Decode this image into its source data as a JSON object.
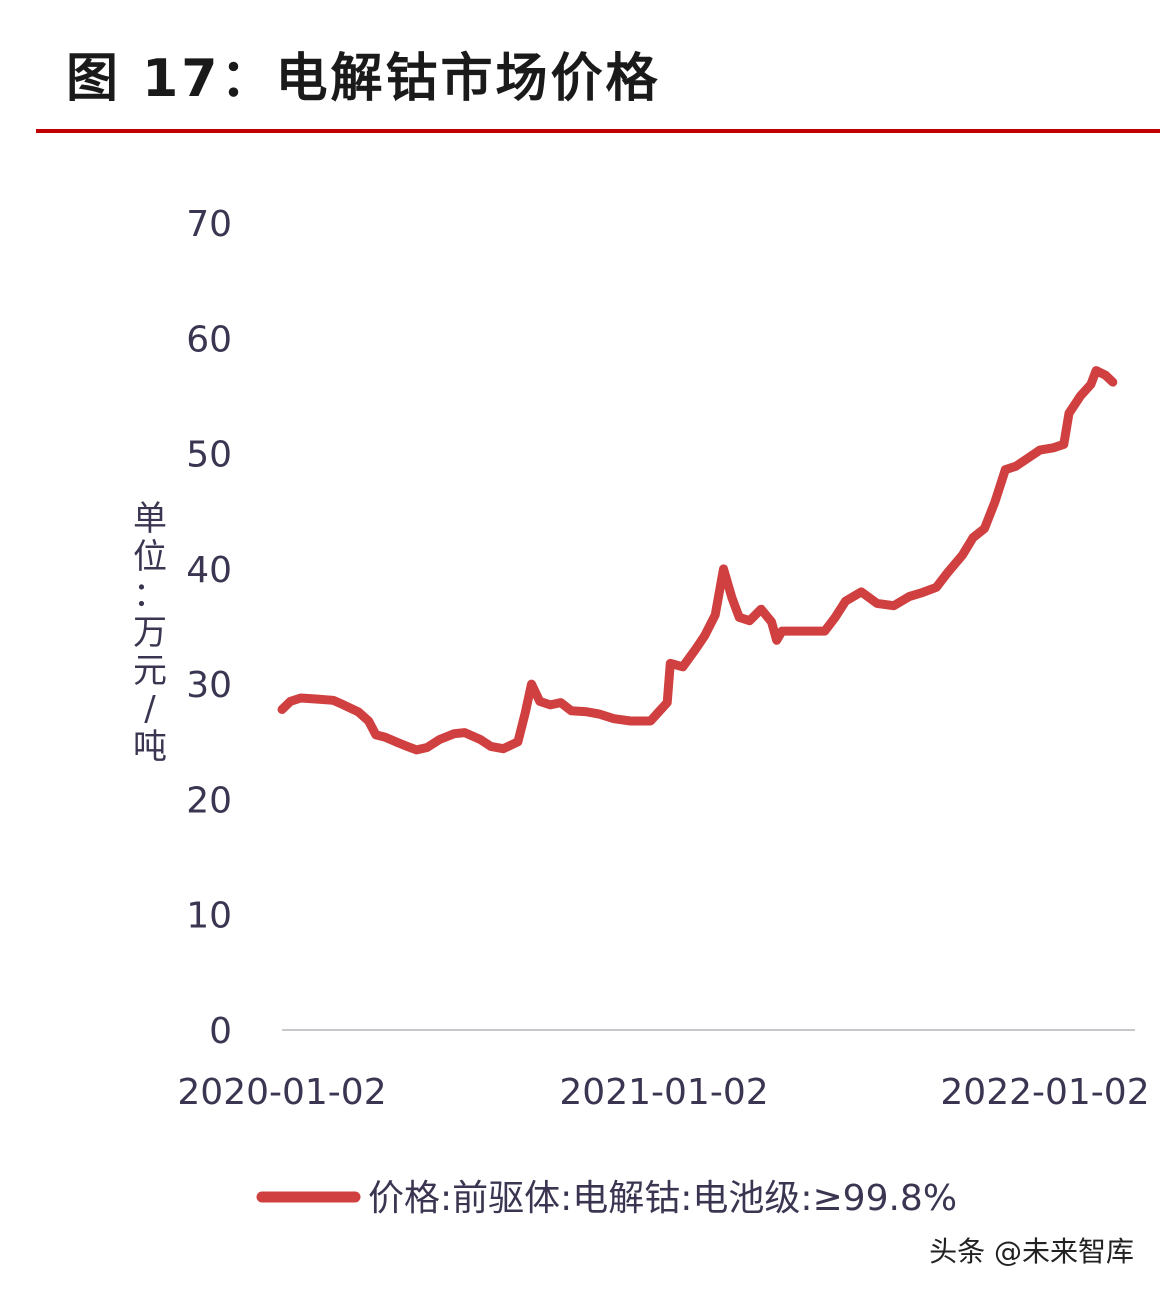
{
  "chart_data": {
    "type": "line",
    "title": "图 17：电解钴市场价格",
    "ylabel": "单位：万元/吨",
    "ylim": [
      0,
      70
    ],
    "y_ticks": [
      "0",
      "10",
      "20",
      "30",
      "40",
      "50",
      "60",
      "70"
    ],
    "x_ticks": [
      "2020-01-02",
      "2021-01-02",
      "2022-01-02"
    ],
    "legend_position": "bottom",
    "grid": false,
    "line_color": "#d04040",
    "series": [
      {
        "name": "价格:前驱体:电解钴:电池级:≥99.8%",
        "points": [
          [
            "2020-01-02",
            27.8
          ],
          [
            "2020-01-10",
            28.5
          ],
          [
            "2020-01-20",
            28.8
          ],
          [
            "2020-02-05",
            28.7
          ],
          [
            "2020-02-20",
            28.6
          ],
          [
            "2020-03-01",
            28.2
          ],
          [
            "2020-03-15",
            27.6
          ],
          [
            "2020-03-25",
            26.8
          ],
          [
            "2020-04-01",
            25.6
          ],
          [
            "2020-04-10",
            25.4
          ],
          [
            "2020-04-20",
            25.0
          ],
          [
            "2020-05-01",
            24.6
          ],
          [
            "2020-05-10",
            24.3
          ],
          [
            "2020-05-20",
            24.5
          ],
          [
            "2020-06-01",
            25.2
          ],
          [
            "2020-06-15",
            25.7
          ],
          [
            "2020-06-25",
            25.8
          ],
          [
            "2020-07-10",
            25.2
          ],
          [
            "2020-07-20",
            24.6
          ],
          [
            "2020-08-01",
            24.4
          ],
          [
            "2020-08-15",
            25.0
          ],
          [
            "2020-08-22",
            27.5
          ],
          [
            "2020-08-28",
            30.0
          ],
          [
            "2020-09-05",
            28.5
          ],
          [
            "2020-09-15",
            28.2
          ],
          [
            "2020-09-25",
            28.4
          ],
          [
            "2020-10-05",
            27.7
          ],
          [
            "2020-10-20",
            27.6
          ],
          [
            "2020-11-01",
            27.4
          ],
          [
            "2020-11-15",
            27.0
          ],
          [
            "2020-12-01",
            26.8
          ],
          [
            "2020-12-20",
            26.8
          ],
          [
            "2020-12-28",
            27.6
          ],
          [
            "2021-01-05",
            28.4
          ],
          [
            "2021-01-08",
            31.8
          ],
          [
            "2021-01-20",
            31.5
          ],
          [
            "2021-02-01",
            33.0
          ],
          [
            "2021-02-10",
            34.2
          ],
          [
            "2021-02-20",
            36.0
          ],
          [
            "2021-02-28",
            40.0
          ],
          [
            "2021-03-08",
            37.5
          ],
          [
            "2021-03-15",
            35.8
          ],
          [
            "2021-03-25",
            35.5
          ],
          [
            "2021-04-05",
            36.5
          ],
          [
            "2021-04-15",
            35.4
          ],
          [
            "2021-04-20",
            33.8
          ],
          [
            "2021-04-25",
            34.6
          ],
          [
            "2021-05-15",
            34.6
          ],
          [
            "2021-06-05",
            34.6
          ],
          [
            "2021-06-15",
            35.8
          ],
          [
            "2021-06-25",
            37.2
          ],
          [
            "2021-07-10",
            38.0
          ],
          [
            "2021-07-25",
            37.0
          ],
          [
            "2021-08-10",
            36.8
          ],
          [
            "2021-08-25",
            37.6
          ],
          [
            "2021-09-05",
            37.9
          ],
          [
            "2021-09-20",
            38.4
          ],
          [
            "2021-10-01",
            39.7
          ],
          [
            "2021-10-15",
            41.2
          ],
          [
            "2021-10-25",
            42.7
          ],
          [
            "2021-11-05",
            43.5
          ],
          [
            "2021-11-15",
            45.8
          ],
          [
            "2021-11-25",
            48.6
          ],
          [
            "2021-12-05",
            48.9
          ],
          [
            "2021-12-15",
            49.5
          ],
          [
            "2021-12-28",
            50.3
          ],
          [
            "2022-01-10",
            50.5
          ],
          [
            "2022-01-20",
            50.8
          ],
          [
            "2022-01-25",
            53.5
          ],
          [
            "2022-02-05",
            55.0
          ],
          [
            "2022-02-15",
            56.0
          ],
          [
            "2022-02-20",
            57.2
          ],
          [
            "2022-03-01",
            56.8
          ],
          [
            "2022-03-08",
            56.2
          ]
        ]
      }
    ]
  },
  "watermark": "头条 @未来智库"
}
